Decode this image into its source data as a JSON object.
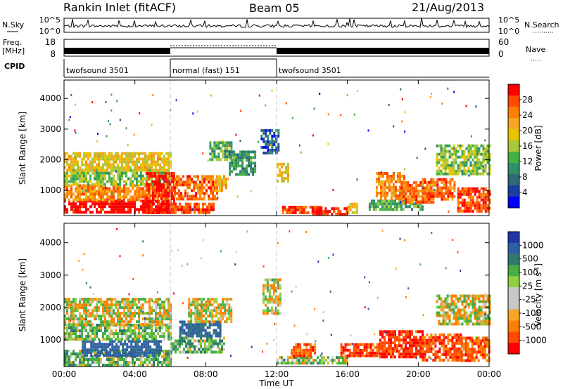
{
  "header": {
    "title": "Rankin Inlet (fitACF)",
    "beam": "Beam 05",
    "date": "21/Aug/2013"
  },
  "strip_labels": {
    "nsky": "N.Sky",
    "nsky_ticks": [
      "10^5",
      "10^0"
    ],
    "nsearch": "N.Search",
    "nsearch_ticks": [
      "10^5",
      "10^0"
    ],
    "freq": "Freq.",
    "freq_unit": "[MHz]",
    "freq_ticks": [
      "18",
      "8"
    ],
    "nave": "Nave",
    "nave_ticks": [
      "60",
      "0"
    ],
    "cpid": "CPID"
  },
  "cpid_segments": [
    {
      "label": "twofsound 3501",
      "start_hour": 0,
      "end_hour": 6
    },
    {
      "label": "normal (fast) 151",
      "start_hour": 6,
      "end_hour": 12
    },
    {
      "label": "twofsound 3501",
      "start_hour": 12,
      "end_hour": 24
    }
  ],
  "x_axis": {
    "label": "Time UT",
    "range_hours": [
      0,
      24
    ],
    "tick_hours": [
      0,
      4,
      8,
      12,
      16,
      20,
      24
    ],
    "tick_labels": [
      "00:00",
      "04:00",
      "08:00",
      "12:00",
      "16:00",
      "20:00",
      "00:00"
    ]
  },
  "chart_data": [
    {
      "type": "heatmap",
      "parameter": "Power",
      "ylabel": "Slant Range [km]",
      "ylim": [
        180,
        4600
      ],
      "yticks": [
        1000,
        2000,
        3000,
        4000
      ],
      "colorbar_label": "Power [dB]",
      "colorbar_ticks": [
        "28",
        "24",
        "20",
        "16",
        "12",
        "8",
        "4"
      ],
      "colorbar_colors": [
        "#ff0000",
        "#ff4a00",
        "#ff8000",
        "#f5a623",
        "#e8c400",
        "#a8c83a",
        "#46b043",
        "#2f8f6a",
        "#2f6a78",
        "#1a3ea0",
        "#0000ff"
      ],
      "regions": [
        {
          "t": [
            0.0,
            6.0
          ],
          "r": [
            250,
            700
          ],
          "level": 30
        },
        {
          "t": [
            0.0,
            6.0
          ],
          "r": [
            700,
            1200
          ],
          "level": 22
        },
        {
          "t": [
            0.0,
            6.0
          ],
          "r": [
            1200,
            1700
          ],
          "level": 14
        },
        {
          "t": [
            0.0,
            6.0
          ],
          "r": [
            1700,
            2250
          ],
          "level": 18
        },
        {
          "t": [
            4.6,
            6.2
          ],
          "r": [
            300,
            1600
          ],
          "level": 28
        },
        {
          "t": [
            6.0,
            8.5
          ],
          "r": [
            250,
            600
          ],
          "level": 26
        },
        {
          "t": [
            6.2,
            8.6
          ],
          "r": [
            700,
            1500
          ],
          "level": 24
        },
        {
          "t": [
            8.5,
            9.2
          ],
          "r": [
            1000,
            1500
          ],
          "level": 20
        },
        {
          "t": [
            8.2,
            9.4
          ],
          "r": [
            2000,
            2600
          ],
          "level": 12
        },
        {
          "t": [
            9.3,
            10.8
          ],
          "r": [
            1500,
            2300
          ],
          "level": 10
        },
        {
          "t": [
            11.1,
            12.1
          ],
          "r": [
            2200,
            3000
          ],
          "level": 6
        },
        {
          "t": [
            12.0,
            12.7
          ],
          "r": [
            1300,
            1900
          ],
          "level": 18
        },
        {
          "t": [
            12.3,
            14.5
          ],
          "r": [
            250,
            500
          ],
          "level": 26
        },
        {
          "t": [
            14.0,
            16.0
          ],
          "r": [
            250,
            450
          ],
          "level": 28
        },
        {
          "t": [
            16.0,
            16.5
          ],
          "r": [
            300,
            600
          ],
          "level": 18
        },
        {
          "t": [
            17.2,
            20.2
          ],
          "r": [
            400,
            700
          ],
          "level": 12
        },
        {
          "t": [
            17.6,
            19.2
          ],
          "r": [
            700,
            1600
          ],
          "level": 22
        },
        {
          "t": [
            19.0,
            20.8
          ],
          "r": [
            600,
            1300
          ],
          "level": 24
        },
        {
          "t": [
            20.2,
            22.0
          ],
          "r": [
            700,
            1400
          ],
          "level": 24
        },
        {
          "t": [
            21.0,
            24.0
          ],
          "r": [
            1500,
            2500
          ],
          "level": 14
        },
        {
          "t": [
            22.2,
            24.0
          ],
          "r": [
            300,
            1100
          ],
          "level": 26
        }
      ]
    },
    {
      "type": "heatmap",
      "parameter": "Velocity",
      "ylabel": "Slant Range [km]",
      "ylim": [
        180,
        4600
      ],
      "yticks": [
        1000,
        2000,
        3000,
        4000
      ],
      "colorbar_label": "Velocity [m s^-1]",
      "colorbar_ticks": [
        "1000",
        "500",
        "100",
        "25",
        "-25",
        "-100",
        "-500",
        "-1000"
      ],
      "colorbar_colors": [
        "#2036a8",
        "#2e5fa3",
        "#2f7a6e",
        "#46b043",
        "#8fd040",
        "#c8c8c8",
        "#c8c8c8",
        "#f5a623",
        "#ff8000",
        "#ff4a00",
        "#ff0000"
      ],
      "regions": [
        {
          "t": [
            0.0,
            6.0
          ],
          "r": [
            250,
            700
          ],
          "v": 150
        },
        {
          "t": [
            1.0,
            5.5
          ],
          "r": [
            500,
            1000
          ],
          "v": 700
        },
        {
          "t": [
            0.0,
            6.0
          ],
          "r": [
            1000,
            1500
          ],
          "v": 150
        },
        {
          "t": [
            0.0,
            6.0
          ],
          "r": [
            1500,
            2300
          ],
          "v": 0
        },
        {
          "t": [
            6.0,
            9.0
          ],
          "r": [
            600,
            1100
          ],
          "v": 200
        },
        {
          "t": [
            6.5,
            8.8
          ],
          "r": [
            1100,
            1600
          ],
          "v": 600
        },
        {
          "t": [
            7.0,
            9.5
          ],
          "r": [
            1600,
            2300
          ],
          "v": 0
        },
        {
          "t": [
            11.2,
            12.2
          ],
          "r": [
            1800,
            2900
          ],
          "v": 0
        },
        {
          "t": [
            12.0,
            16.0
          ],
          "r": [
            250,
            500
          ],
          "v": 100
        },
        {
          "t": [
            12.8,
            14.2
          ],
          "r": [
            500,
            900
          ],
          "v": -300
        },
        {
          "t": [
            15.6,
            17.8
          ],
          "r": [
            500,
            900
          ],
          "v": -400
        },
        {
          "t": [
            17.8,
            20.2
          ],
          "r": [
            500,
            1300
          ],
          "v": -500
        },
        {
          "t": [
            20.2,
            22.4
          ],
          "r": [
            400,
            1200
          ],
          "v": -400
        },
        {
          "t": [
            22.4,
            24.0
          ],
          "r": [
            400,
            1100
          ],
          "v": -350
        },
        {
          "t": [
            21.0,
            24.0
          ],
          "r": [
            1500,
            2400
          ],
          "v": 0
        }
      ]
    }
  ]
}
